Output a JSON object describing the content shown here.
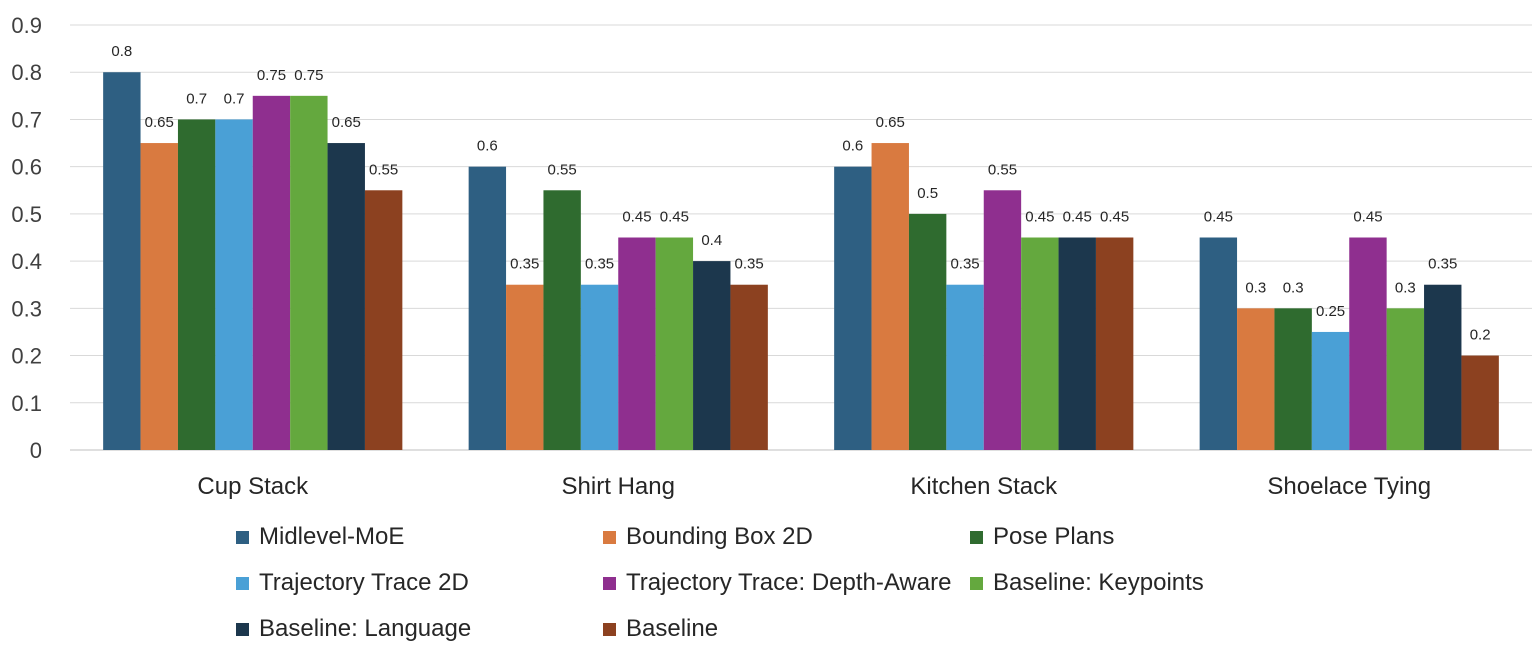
{
  "chart_data": {
    "type": "bar",
    "categories": [
      "Cup Stack",
      "Shirt Hang",
      "Kitchen Stack",
      "Shoelace Tying"
    ],
    "series": [
      {
        "name": "Midlevel-MoE",
        "color": "#2e5f82",
        "values": [
          0.8,
          0.6,
          0.6,
          0.45
        ]
      },
      {
        "name": "Bounding Box 2D",
        "color": "#d97a40",
        "values": [
          0.65,
          0.35,
          0.65,
          0.3
        ]
      },
      {
        "name": "Pose Plans",
        "color": "#2f6b2f",
        "values": [
          0.7,
          0.55,
          0.5,
          0.3
        ]
      },
      {
        "name": "Trajectory Trace 2D",
        "color": "#4aa0d6",
        "values": [
          0.7,
          0.35,
          0.35,
          0.25
        ]
      },
      {
        "name": "Trajectory Trace: Depth-Aware",
        "color": "#8f2f8f",
        "values": [
          0.75,
          0.45,
          0.55,
          0.45
        ]
      },
      {
        "name": "Baseline: Keypoints",
        "color": "#64a83e",
        "values": [
          0.75,
          0.45,
          0.45,
          0.3
        ]
      },
      {
        "name": "Baseline: Language",
        "color": "#1c374d",
        "values": [
          0.65,
          0.4,
          0.45,
          0.35
        ]
      },
      {
        "name": "Baseline",
        "color": "#8c4120",
        "values": [
          0.55,
          0.35,
          0.45,
          0.2
        ]
      }
    ],
    "yticks": [
      "0",
      "0.1",
      "0.2",
      "0.3",
      "0.4",
      "0.5",
      "0.6",
      "0.7",
      "0.8",
      "0.9"
    ],
    "ylim": [
      0,
      0.9
    ],
    "grid": true,
    "legend_position": "bottom",
    "title": "",
    "xlabel": "",
    "ylabel": ""
  }
}
